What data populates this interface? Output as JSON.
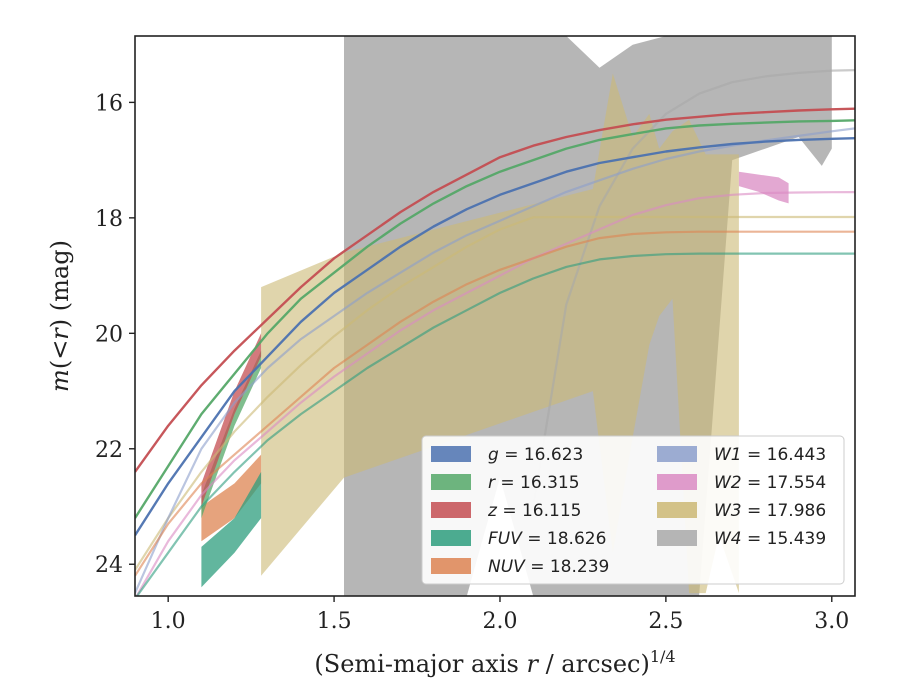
{
  "chart_data": {
    "type": "line",
    "xlabel_main": "(Semi-major axis ",
    "xlabel_var": "r",
    "xlabel_tail": " / arcsec)",
    "xlabel_sup": "1/4",
    "ylabel_m": "m",
    "ylabel_mid": "(<",
    "ylabel_r": "r",
    "ylabel_tail": ") (mag)",
    "xlim": [
      0.9,
      3.07
    ],
    "ylim": [
      24.55,
      14.85
    ],
    "y_inverted": true,
    "xticks": [
      "1.0",
      "1.5",
      "2.0",
      "2.5",
      "3.0"
    ],
    "yticks": [
      "16",
      "18",
      "20",
      "22",
      "24"
    ],
    "legend_position": "lower-right",
    "series": [
      {
        "name": "g",
        "value": "16.623",
        "color": "#4c72b0",
        "curve_x": [
          0.9,
          1.0,
          1.1,
          1.2,
          1.3,
          1.4,
          1.5,
          1.6,
          1.7,
          1.8,
          1.9,
          2.0,
          2.1,
          2.2,
          2.3,
          2.4,
          2.5,
          2.6,
          2.7,
          2.8,
          2.9,
          3.0,
          3.07
        ],
        "curve_y": [
          23.5,
          22.6,
          21.8,
          21.0,
          20.4,
          19.8,
          19.3,
          18.9,
          18.5,
          18.15,
          17.85,
          17.6,
          17.4,
          17.2,
          17.05,
          16.95,
          16.85,
          16.78,
          16.72,
          16.68,
          16.65,
          16.63,
          16.62
        ],
        "band_x": [],
        "band_lo": [],
        "band_hi": []
      },
      {
        "name": "r",
        "value": "16.315",
        "color": "#55a868",
        "curve_x": [
          0.9,
          1.0,
          1.1,
          1.2,
          1.3,
          1.4,
          1.5,
          1.6,
          1.7,
          1.8,
          1.9,
          2.0,
          2.1,
          2.2,
          2.3,
          2.4,
          2.5,
          2.6,
          2.7,
          2.8,
          2.9,
          3.0,
          3.07
        ],
        "curve_y": [
          23.2,
          22.3,
          21.4,
          20.7,
          20.0,
          19.4,
          18.95,
          18.5,
          18.1,
          17.75,
          17.45,
          17.2,
          17.0,
          16.8,
          16.65,
          16.55,
          16.45,
          16.4,
          16.37,
          16.35,
          16.33,
          16.32,
          16.31
        ],
        "band_x": [
          1.1,
          1.2,
          1.28
        ],
        "band_lo": [
          22.8,
          21.3,
          20.3
        ],
        "band_hi": [
          23.2,
          21.6,
          20.6
        ]
      },
      {
        "name": "z",
        "value": "16.115",
        "color": "#c44e52",
        "curve_x": [
          0.9,
          1.0,
          1.1,
          1.2,
          1.3,
          1.4,
          1.5,
          1.6,
          1.7,
          1.8,
          1.9,
          2.0,
          2.1,
          2.2,
          2.3,
          2.4,
          2.5,
          2.6,
          2.7,
          2.8,
          2.9,
          3.0,
          3.07
        ],
        "curve_y": [
          22.4,
          21.6,
          20.9,
          20.3,
          19.75,
          19.2,
          18.7,
          18.3,
          17.9,
          17.55,
          17.25,
          16.95,
          16.75,
          16.6,
          16.48,
          16.38,
          16.3,
          16.25,
          16.2,
          16.17,
          16.14,
          16.12,
          16.11
        ],
        "band_x": [
          1.1,
          1.2,
          1.28
        ],
        "band_lo": [
          22.6,
          21.0,
          20.0
        ],
        "band_hi": [
          23.0,
          21.4,
          20.4
        ]
      },
      {
        "name": "FUV",
        "value": "18.626",
        "color": "#2e9d7e",
        "curve_x": [
          0.9,
          1.0,
          1.1,
          1.2,
          1.3,
          1.4,
          1.5,
          1.6,
          1.7,
          1.8,
          1.9,
          2.0,
          2.1,
          2.2,
          2.3,
          2.4,
          2.5,
          2.6,
          2.7,
          2.8,
          2.9,
          3.0,
          3.07
        ],
        "curve_y": [
          24.6,
          23.8,
          23.0,
          22.4,
          21.85,
          21.4,
          21.0,
          20.6,
          20.25,
          19.9,
          19.6,
          19.3,
          19.05,
          18.85,
          18.72,
          18.66,
          18.63,
          18.62,
          18.62,
          18.62,
          18.62,
          18.62,
          18.62
        ],
        "band_x": [
          1.1,
          1.2,
          1.28
        ],
        "band_lo": [
          23.7,
          23.2,
          22.4
        ],
        "band_hi": [
          24.4,
          23.8,
          23.2
        ]
      },
      {
        "name": "NUV",
        "value": "18.239",
        "color": "#dd8452",
        "curve_x": [
          0.9,
          1.0,
          1.1,
          1.2,
          1.3,
          1.4,
          1.5,
          1.6,
          1.7,
          1.8,
          1.9,
          2.0,
          2.1,
          2.2,
          2.3,
          2.4,
          2.5,
          2.6,
          2.7,
          2.8,
          2.9,
          3.0,
          3.07
        ],
        "curve_y": [
          24.2,
          23.3,
          22.6,
          22.1,
          21.6,
          21.1,
          20.6,
          20.2,
          19.8,
          19.45,
          19.15,
          18.9,
          18.7,
          18.5,
          18.35,
          18.28,
          18.25,
          18.24,
          18.24,
          18.24,
          18.24,
          18.24,
          18.24
        ],
        "band_x": [
          1.1,
          1.2,
          1.28
        ],
        "band_lo": [
          23.0,
          22.6,
          22.1
        ],
        "band_hi": [
          23.6,
          23.2,
          22.6
        ]
      },
      {
        "name": "W1",
        "value": "16.443",
        "color": "#8c9fcb",
        "curve_x": [
          0.9,
          1.0,
          1.1,
          1.2,
          1.3,
          1.4,
          1.5,
          1.6,
          1.7,
          1.8,
          1.9,
          2.0,
          2.1,
          2.2,
          2.3,
          2.4,
          2.5,
          2.6,
          2.7,
          2.8,
          2.9,
          3.0,
          3.07
        ],
        "curve_y": [
          24.5,
          23.2,
          22.0,
          21.2,
          20.6,
          20.1,
          19.7,
          19.3,
          18.95,
          18.6,
          18.3,
          18.05,
          17.8,
          17.55,
          17.35,
          17.15,
          16.98,
          16.85,
          16.75,
          16.66,
          16.58,
          16.5,
          16.45
        ],
        "band_x": [],
        "band_lo": [],
        "band_hi": []
      },
      {
        "name": "W2",
        "value": "17.554",
        "color": "#da8bc3",
        "curve_x": [
          0.9,
          1.0,
          1.1,
          1.2,
          1.3,
          1.4,
          1.5,
          1.6,
          1.7,
          1.8,
          1.9,
          2.0,
          2.1,
          2.2,
          2.3,
          2.4,
          2.5,
          2.6,
          2.7,
          2.8,
          2.9,
          3.0,
          3.07
        ],
        "curve_y": [
          24.6,
          23.6,
          22.8,
          22.2,
          21.7,
          21.2,
          20.75,
          20.35,
          19.95,
          19.6,
          19.3,
          19.0,
          18.7,
          18.45,
          18.2,
          17.95,
          17.78,
          17.66,
          17.6,
          17.57,
          17.56,
          17.555,
          17.554
        ],
        "band_x": [
          2.72,
          2.78,
          2.84,
          2.87
        ],
        "band_lo": [
          17.2,
          17.25,
          17.3,
          17.4
        ],
        "band_hi": [
          17.45,
          17.55,
          17.7,
          17.75
        ]
      },
      {
        "name": "W3",
        "value": "17.986",
        "color": "#ccb974",
        "curve_x": [
          0.9,
          1.0,
          1.1,
          1.2,
          1.3,
          1.4,
          1.5,
          1.6,
          1.7,
          1.8,
          1.9,
          2.0,
          2.1,
          2.2,
          2.3,
          2.4,
          2.5,
          2.6,
          2.7,
          2.8,
          2.9,
          3.0,
          3.07
        ],
        "curve_y": [
          24.1,
          23.2,
          22.4,
          21.7,
          21.1,
          20.55,
          20.05,
          19.6,
          19.2,
          18.85,
          18.5,
          18.2,
          17.99,
          17.986,
          17.986,
          17.986,
          17.986,
          17.986,
          17.986,
          17.986,
          17.986,
          17.986,
          17.986
        ],
        "band_x": [
          1.28,
          1.53,
          2.28,
          2.34,
          2.4,
          2.45,
          2.48,
          2.52,
          2.57,
          2.62,
          2.66,
          2.72
        ],
        "band_lo": [
          19.2,
          18.6,
          17.5,
          15.5,
          16.6,
          16.2,
          16.8,
          16.5,
          16.3,
          16.9,
          16.9,
          16.9
        ],
        "band_hi": [
          24.2,
          22.5,
          21.0,
          23.8,
          21.8,
          20.2,
          19.7,
          19.4,
          24.5,
          24.5,
          23.5,
          24.5
        ]
      },
      {
        "name": "W4",
        "value": "15.439",
        "color": "#a9a9a9",
        "curve_x": [
          0.9,
          1.0,
          1.1,
          1.2,
          1.3,
          1.4,
          1.5,
          1.6,
          1.7,
          1.8,
          1.9,
          2.0,
          2.1,
          2.2,
          2.3,
          2.4,
          2.5,
          2.6,
          2.7,
          2.8,
          2.9,
          3.0,
          3.07
        ],
        "curve_y": [
          null,
          null,
          null,
          null,
          null,
          null,
          null,
          null,
          null,
          null,
          null,
          null,
          23.0,
          19.5,
          17.8,
          16.8,
          16.2,
          15.85,
          15.65,
          15.55,
          15.49,
          15.45,
          15.44
        ],
        "band_x": [
          1.53,
          1.6,
          1.7,
          1.8,
          1.9,
          2.0,
          2.1,
          2.2,
          2.3,
          2.4,
          2.5,
          2.6,
          2.7,
          2.8,
          2.9,
          2.97,
          3.0
        ],
        "band_lo": [
          14.85,
          14.85,
          14.85,
          14.85,
          14.85,
          14.85,
          14.85,
          14.85,
          15.4,
          15.0,
          14.85,
          14.85,
          14.85,
          14.85,
          14.85,
          14.85,
          14.85
        ],
        "band_hi": [
          24.55,
          24.55,
          24.55,
          24.55,
          24.55,
          22.5,
          24.55,
          24.55,
          24.55,
          24.55,
          24.55,
          24.55,
          17.0,
          16.8,
          16.6,
          17.1,
          16.8
        ]
      }
    ]
  }
}
